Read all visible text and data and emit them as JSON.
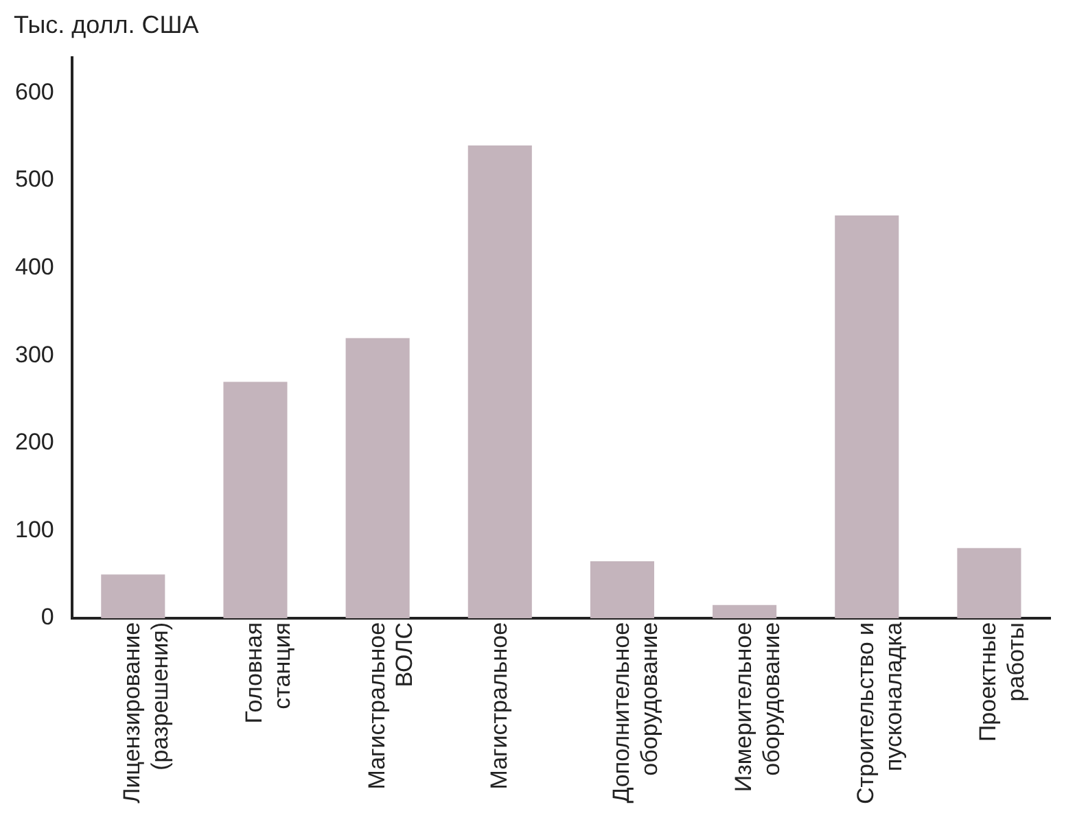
{
  "chart_data": {
    "type": "bar",
    "ylabel": "Тыс. долл. США",
    "categories": [
      "Лицензирование\n(разрешения)",
      "Головная\nстанция",
      "Магистральное\nВОЛС",
      "Магистральное",
      "Дополнительное\nоборудование",
      "Измерительное\nоборудование",
      "Строительство и\nпусконаладка",
      "Проектные\nработы"
    ],
    "values": [
      50,
      270,
      320,
      540,
      65,
      15,
      460,
      80
    ],
    "color": "#c4b4bc",
    "ylim": [
      0,
      640
    ],
    "yticks": [
      0,
      100,
      200,
      300,
      400,
      500,
      600
    ],
    "grid": false
  }
}
